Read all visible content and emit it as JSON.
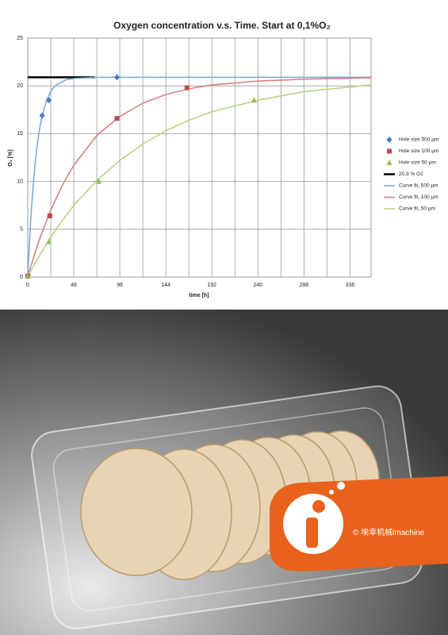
{
  "chart_data": {
    "type": "line",
    "title": "Oxygen concentration v.s. Time. Start at 0,1%O₂",
    "x_label": "time [h]",
    "y_label": "O₂ [%]",
    "xlim": [
      0,
      358
    ],
    "ylim": [
      0,
      25
    ],
    "xticks": [
      0,
      48,
      96,
      144,
      192,
      240,
      288,
      336
    ],
    "xminor_ticks": [
      24,
      72,
      120,
      168,
      216,
      264,
      312
    ],
    "yticks": [
      0,
      5,
      10,
      15,
      20,
      25
    ],
    "grid": true,
    "legend": "right",
    "series": [
      {
        "name": "Hole size 500 µm",
        "style": "diamond",
        "color": "#4a7ebb",
        "x": [
          0,
          15,
          22,
          93
        ],
        "values": [
          0.1,
          16.9,
          18.5,
          20.9
        ]
      },
      {
        "name": "Hole size 100 µm",
        "style": "square",
        "color": "#be4b48",
        "x": [
          0,
          23,
          93,
          166
        ],
        "values": [
          0.1,
          6.4,
          16.6,
          19.8
        ]
      },
      {
        "name": "Hole size 50 µm",
        "style": "triangle",
        "color": "#98b954",
        "x": [
          0,
          22,
          74,
          236
        ],
        "values": [
          0.1,
          3.7,
          10,
          18.5
        ]
      },
      {
        "name": "20,9 % O2",
        "style": "line",
        "color": "#000000",
        "x": [
          0,
          70
        ],
        "values": [
          20.9,
          20.9
        ]
      },
      {
        "name": "Curve fit, 500 µm",
        "style": "line",
        "color": "#7aa3d6",
        "x": [
          0,
          3,
          6,
          9,
          12,
          15,
          20,
          25,
          30,
          40,
          50,
          70,
          358
        ],
        "values": [
          0.1,
          5.9,
          10.1,
          13.2,
          15.3,
          16.9,
          18.6,
          19.6,
          20.1,
          20.65,
          20.8,
          20.9,
          20.9
        ]
      },
      {
        "name": "Curve fit, 100 µm",
        "style": "line",
        "color": "#d67a78",
        "x": [
          0,
          12,
          24,
          36,
          48,
          72,
          96,
          120,
          144,
          168,
          192,
          240,
          288,
          358
        ],
        "values": [
          0.1,
          3.9,
          7.0,
          9.6,
          11.7,
          14.8,
          16.8,
          18.2,
          19.1,
          19.7,
          20.1,
          20.5,
          20.7,
          20.85
        ]
      },
      {
        "name": "Curve fit, 50 µm",
        "style": "line",
        "color": "#b3d17e",
        "x": [
          0,
          12,
          24,
          36,
          48,
          72,
          96,
          120,
          144,
          168,
          192,
          240,
          288,
          358
        ],
        "values": [
          0.1,
          2.2,
          4.2,
          5.9,
          7.5,
          10.1,
          12.2,
          13.9,
          15.3,
          16.4,
          17.3,
          18.5,
          19.4,
          20.1
        ]
      }
    ]
  },
  "watermark": "© 埃幸机械imachine"
}
